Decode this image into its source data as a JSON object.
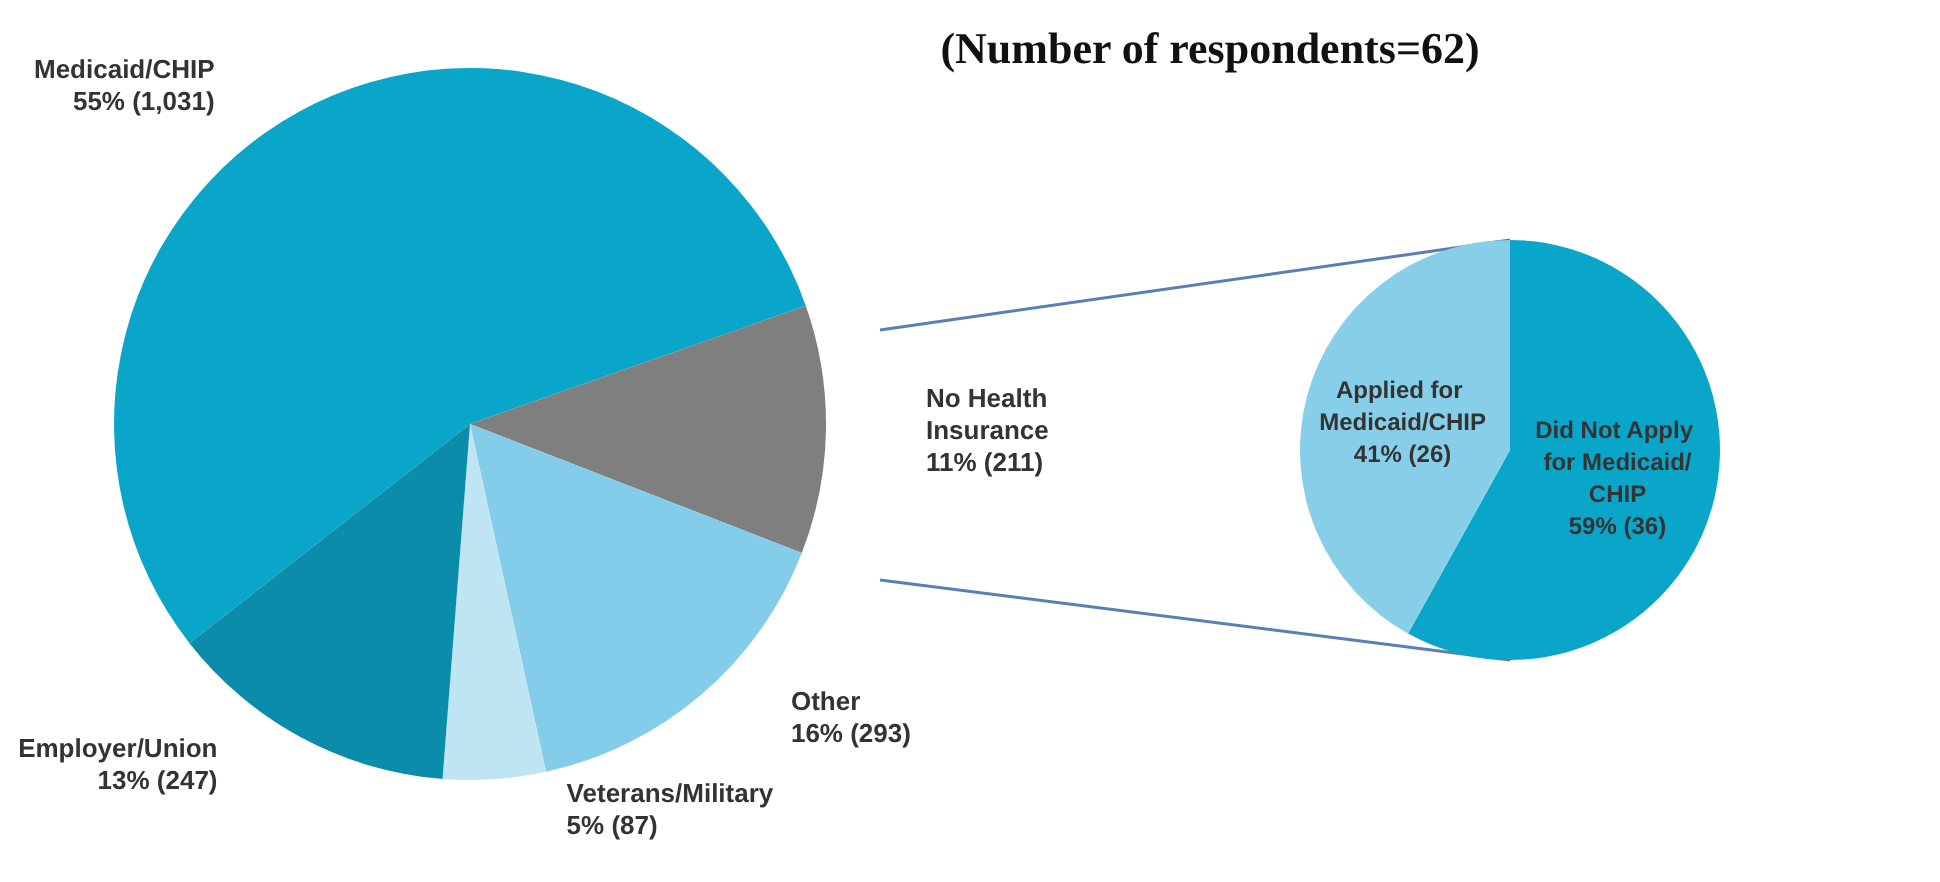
{
  "chart_data": [
    {
      "type": "pie",
      "categories": [
        "Medicaid/CHIP",
        "No Health Insurance",
        "Other",
        "Veterans/Military",
        "Employer/Union"
      ],
      "values": [
        1031,
        211,
        293,
        87,
        247
      ],
      "value_labels": [
        "55% (1,031)",
        "11% (211)",
        "16% (293)",
        "5% (87)",
        "13% (247)"
      ],
      "colors": [
        "#0aa6c9",
        "#7f7f7f",
        "#84cdea",
        "#bfe4f2",
        "#0b8caa"
      ]
    },
    {
      "type": "pie",
      "title": "(Number of respondents=62)",
      "categories": [
        "Did Not Apply for Medicaid/CHIP",
        "Applied for Medicaid/CHIP"
      ],
      "values": [
        36,
        26
      ],
      "value_labels": [
        "59% (36)",
        "41% (26)"
      ],
      "colors": [
        "#0aa6c9",
        "#87cfe9"
      ]
    }
  ]
}
